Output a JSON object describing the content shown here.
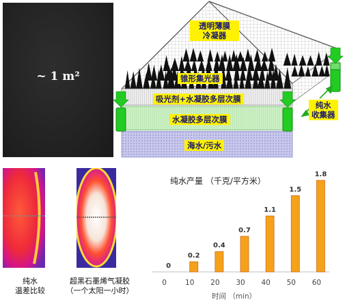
{
  "photo": {
    "area_label": "~ 1 m²"
  },
  "device": {
    "cover_label_line1": "透明薄膜",
    "cover_label_line2": "冷凝器",
    "cone_label": "锥形集光器",
    "absorber_label": "吸光剂+水凝胶多层次膜",
    "hydrogel_label": "水凝胶多层次膜",
    "seawater_label": "海水/污水",
    "collector_line1": "纯水",
    "collector_line2": "收集器"
  },
  "thermal": {
    "left_caption_line1": "纯水",
    "left_caption_line2": "温差比较",
    "right_caption_line1": "超黑石墨烯气凝胶",
    "right_caption_line2": "（一个太阳一小时）"
  },
  "chart_data": {
    "type": "bar",
    "title": "纯水产量 （千克/平方米）",
    "xlabel": "时间 （min）",
    "ylabel": "",
    "categories": [
      "0",
      "10",
      "20",
      "30",
      "40",
      "50",
      "60"
    ],
    "values": [
      0,
      0.2,
      0.4,
      0.7,
      1.1,
      1.5,
      1.8
    ],
    "value_labels": [
      "0",
      "0.2",
      "0.4",
      "0.7",
      "1.1",
      "1.5",
      "1.8"
    ],
    "ylim": [
      0,
      1.8
    ],
    "bar_color": "#f5a21b",
    "bar_edge": "#d2691e",
    "grid": false
  },
  "colors": {
    "hydrogel": "#ccf0c4",
    "seawater": "#c8c8ee",
    "collector": "#22cc22",
    "label_yellow": "#fff200",
    "label_text": "#1b1b6e"
  }
}
